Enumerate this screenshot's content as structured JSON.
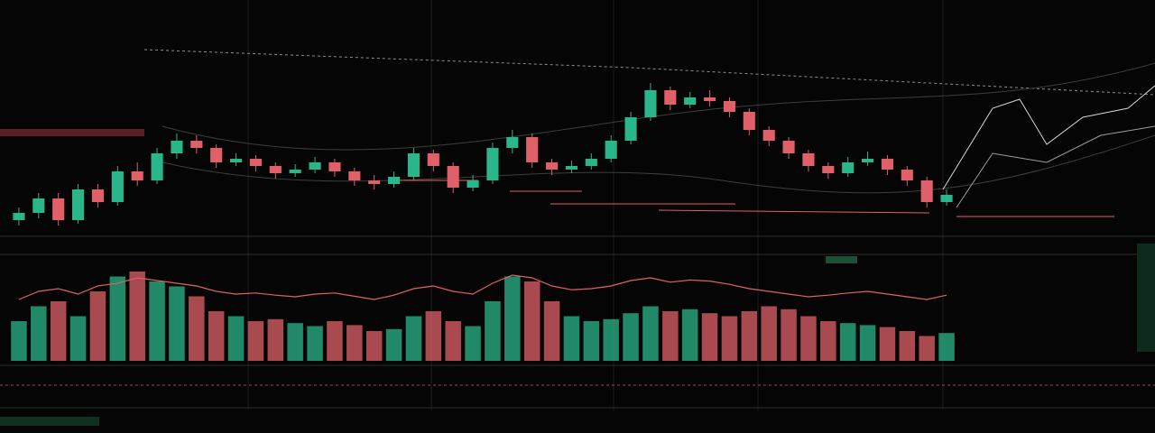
{
  "chart_data": {
    "type": "candlestick",
    "up_color": "#2bb58a",
    "down_color": "#e0606a",
    "ylim": [
      0,
      100
    ],
    "open": [
      18,
      22,
      30,
      18,
      35,
      28,
      45,
      40,
      55,
      62,
      58,
      50,
      52,
      48,
      44,
      46,
      50,
      45,
      40,
      38,
      42,
      55,
      48,
      36,
      40,
      58,
      64,
      50,
      46,
      48,
      52,
      62,
      75,
      90,
      82,
      86,
      84,
      78,
      68,
      62,
      55,
      48,
      44,
      50,
      52,
      46,
      40,
      28
    ],
    "high": [
      25,
      33,
      33,
      38,
      38,
      48,
      50,
      58,
      66,
      65,
      60,
      55,
      54,
      50,
      49,
      53,
      52,
      47,
      43,
      45,
      58,
      57,
      50,
      43,
      61,
      68,
      66,
      52,
      51,
      55,
      65,
      78,
      94,
      92,
      89,
      90,
      86,
      80,
      70,
      64,
      57,
      50,
      53,
      56,
      54,
      48,
      42,
      35
    ],
    "low": [
      15,
      19,
      15,
      16,
      25,
      26,
      37,
      38,
      52,
      55,
      47,
      48,
      45,
      41,
      42,
      44,
      42,
      37,
      35,
      36,
      40,
      45,
      33,
      34,
      38,
      55,
      47,
      43,
      44,
      46,
      50,
      60,
      73,
      79,
      80,
      81,
      75,
      65,
      59,
      52,
      45,
      41,
      42,
      48,
      43,
      37,
      25,
      26
    ],
    "close": [
      22,
      30,
      18,
      35,
      28,
      45,
      40,
      55,
      62,
      58,
      50,
      52,
      48,
      44,
      46,
      50,
      45,
      40,
      38,
      42,
      55,
      48,
      36,
      40,
      58,
      64,
      50,
      46,
      48,
      52,
      62,
      75,
      90,
      82,
      86,
      84,
      78,
      68,
      62,
      55,
      48,
      44,
      50,
      52,
      46,
      40,
      28,
      32
    ],
    "volume": {
      "ylim": [
        0,
        100
      ],
      "values": [
        40,
        55,
        60,
        45,
        70,
        85,
        90,
        80,
        75,
        65,
        50,
        45,
        40,
        42,
        38,
        35,
        40,
        36,
        30,
        32,
        45,
        50,
        40,
        35,
        60,
        85,
        80,
        60,
        45,
        40,
        42,
        48,
        55,
        50,
        52,
        48,
        45,
        50,
        55,
        52,
        45,
        40,
        38,
        36,
        34,
        30,
        25,
        28
      ]
    },
    "oscillator": {
      "ylim": [
        0,
        100
      ],
      "color": "#e0606a",
      "values": [
        30,
        45,
        50,
        40,
        55,
        60,
        70,
        65,
        60,
        55,
        45,
        40,
        42,
        38,
        35,
        40,
        42,
        36,
        30,
        38,
        50,
        55,
        45,
        40,
        60,
        75,
        70,
        55,
        48,
        50,
        55,
        65,
        70,
        62,
        66,
        64,
        58,
        50,
        45,
        40,
        35,
        38,
        42,
        45,
        40,
        35,
        30,
        38
      ]
    }
  }
}
